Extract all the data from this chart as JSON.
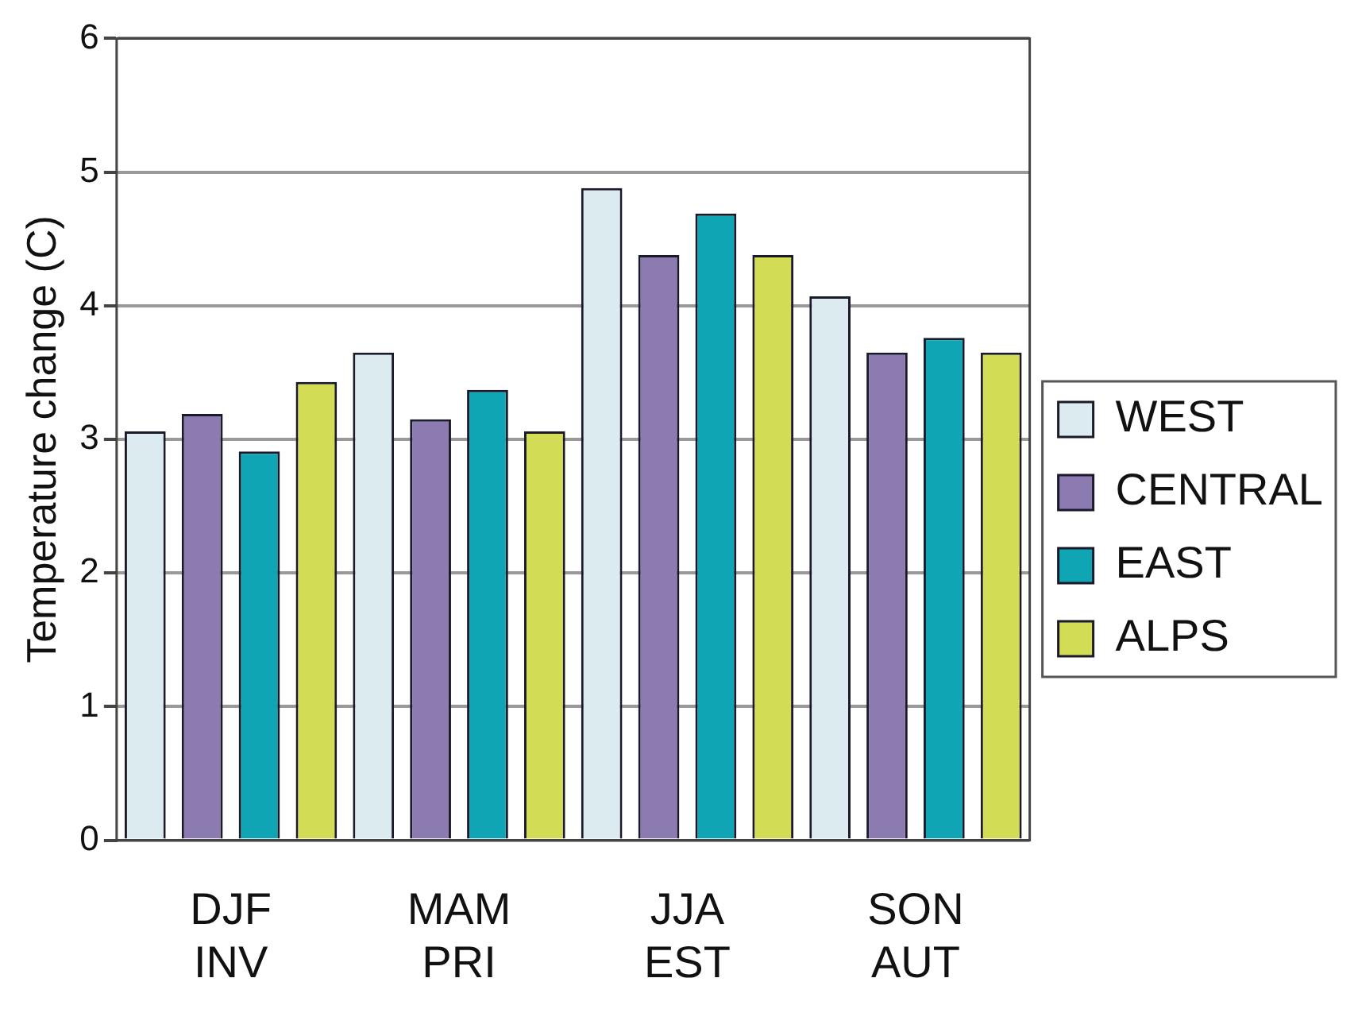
{
  "chart_data": {
    "type": "bar",
    "ylabel": "Temperature change (C)",
    "categories": [
      "DJF\nINV",
      "MAM\nPRI",
      "JJA\nEST",
      "SON\nAUT"
    ],
    "series": [
      {
        "name": "WEST",
        "color": "#dcebf0",
        "values": [
          3.06,
          3.65,
          4.88,
          4.07
        ]
      },
      {
        "name": "CENTRAL",
        "color": "#8c7bb0",
        "values": [
          3.19,
          3.15,
          4.38,
          3.65
        ]
      },
      {
        "name": "EAST",
        "color": "#0fa5b5",
        "values": [
          2.91,
          3.37,
          4.69,
          3.76
        ]
      },
      {
        "name": "ALPS",
        "color": "#d2dc55",
        "values": [
          3.43,
          3.06,
          4.38,
          3.65
        ]
      }
    ],
    "ylim": [
      0,
      6
    ],
    "yticks": [
      0,
      1,
      2,
      3,
      4,
      5,
      6
    ],
    "grid": "y",
    "legend": "right"
  }
}
